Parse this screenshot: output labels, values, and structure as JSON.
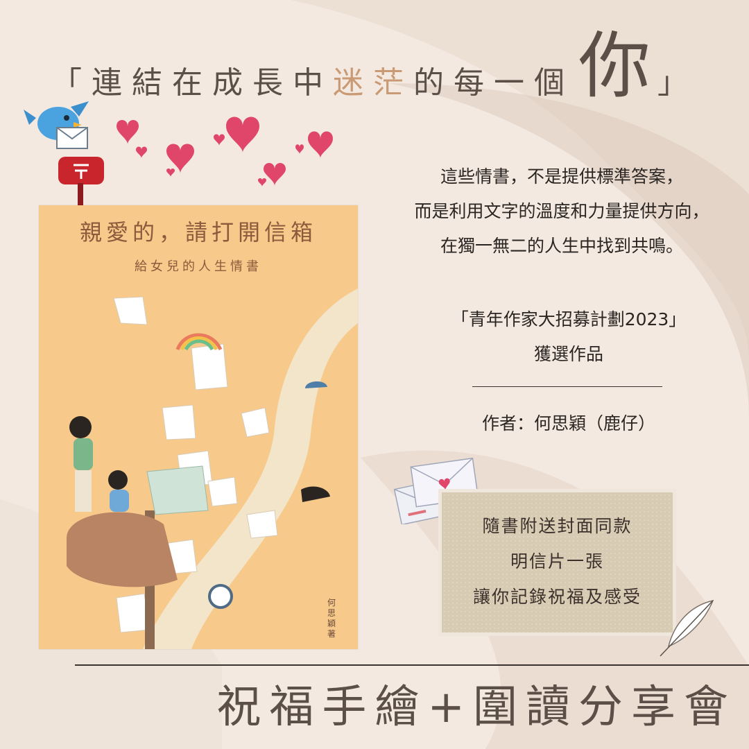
{
  "headline": {
    "open_bracket": "「",
    "part1": "連結在成長中",
    "accent": "迷茫",
    "part2": "的每一個",
    "big": "你",
    "close_bracket": "」"
  },
  "cover": {
    "title": "親愛的，請打開信箱",
    "subtitle": "給女兒的人生情書",
    "author": "何思穎著"
  },
  "description": {
    "lines": [
      "這些情書，不是提供標準答案，",
      "而是利用文字的溫度和力量提供方向，",
      "在獨一無二的人生中找到共鳴。"
    ]
  },
  "award": {
    "line1": "「青年作家大招募計劃2023」",
    "line2": "獲選作品"
  },
  "author_line": "作者：何思穎（鹿仔）",
  "postcard": {
    "lines": [
      "隨書附送封面同款",
      "明信片一張",
      "讓你記錄祝福及感受"
    ]
  },
  "footer": "祝福手繪+圍讀分享會",
  "colors": {
    "background": "#f3e9e0",
    "headline_text": "#5b4f48",
    "accent": "#c99a74",
    "cover_bg": "#f7c98a",
    "heart": "#e0456a",
    "postcard_bg": "#d8cbb3"
  }
}
